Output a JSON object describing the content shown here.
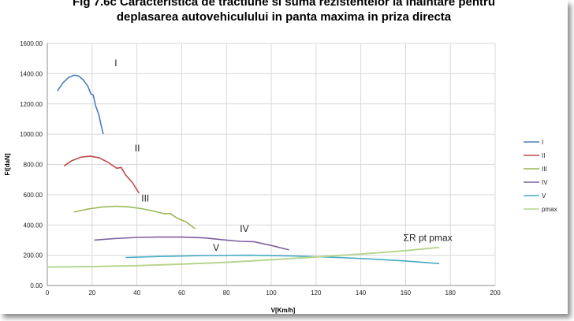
{
  "title_line1": "Fig 7.6c Caracteristica de tractiune si suma rezistentelor la inaintare pentru",
  "title_line2": "deplasarea autovehiculului in panta maxima in priza directa",
  "chart_data": {
    "type": "line",
    "xlabel": "V[Km/h]",
    "ylabel": "Ft[daN]",
    "xlim": [
      0,
      200
    ],
    "ylim": [
      0,
      1600
    ],
    "xticks": [
      "0",
      "20",
      "40",
      "60",
      "80",
      "100",
      "120",
      "140",
      "160",
      "180",
      "200"
    ],
    "yticks": [
      "0.00",
      "200.00",
      "400.00",
      "600.00",
      "800.00",
      "1000.00",
      "1200.00",
      "1400.00",
      "1600.00"
    ],
    "grid": true,
    "legend_position": "right",
    "series": [
      {
        "name": "I",
        "color": "#4a7ebb",
        "x": [
          4.5,
          7,
          9.5,
          12,
          14,
          16,
          18,
          19.5,
          20.5,
          21.5,
          23,
          24,
          25
        ],
        "y": [
          1285,
          1340,
          1375,
          1390,
          1385,
          1360,
          1320,
          1265,
          1260,
          1190,
          1130,
          1060,
          1000
        ]
      },
      {
        "name": "II",
        "color": "#be4b48",
        "x": [
          7.5,
          11,
          15,
          19,
          23,
          27,
          31,
          33,
          35,
          38,
          41
        ],
        "y": [
          790,
          825,
          848,
          855,
          845,
          815,
          775,
          780,
          730,
          680,
          610
        ]
      },
      {
        "name": "III",
        "color": "#98b954",
        "x": [
          12,
          18,
          24,
          30,
          36,
          42,
          48,
          52,
          55,
          58,
          62,
          66
        ],
        "y": [
          485,
          505,
          518,
          524,
          520,
          508,
          490,
          475,
          475,
          445,
          420,
          375
        ]
      },
      {
        "name": "IV",
        "color": "#7d60a0",
        "x": [
          21,
          30,
          40,
          50,
          60,
          70,
          80,
          86,
          92,
          100,
          108
        ],
        "y": [
          300,
          310,
          318,
          320,
          320,
          315,
          300,
          292,
          290,
          265,
          235
        ]
      },
      {
        "name": "V",
        "color": "#46aac5",
        "x": [
          35,
          50,
          70,
          90,
          110,
          130,
          145,
          160,
          175
        ],
        "y": [
          185,
          192,
          198,
          200,
          195,
          185,
          175,
          162,
          145
        ]
      },
      {
        "name": "pmax",
        "color": "#b7d58f",
        "x": [
          0,
          20,
          40,
          60,
          80,
          100,
          120,
          140,
          160,
          175
        ],
        "y": [
          122,
          125,
          131,
          141,
          153,
          170,
          188,
          208,
          230,
          252
        ]
      }
    ],
    "annotations": [
      {
        "text": "I",
        "x": 30,
        "y": 1450
      },
      {
        "text": "II",
        "x": 39,
        "y": 885
      },
      {
        "text": "III",
        "x": 42,
        "y": 555
      },
      {
        "text": "IV",
        "x": 86,
        "y": 355
      },
      {
        "text": "V",
        "x": 74,
        "y": 230
      },
      {
        "text": "ΣR pt pmax",
        "x": 159,
        "y": 295
      }
    ]
  }
}
